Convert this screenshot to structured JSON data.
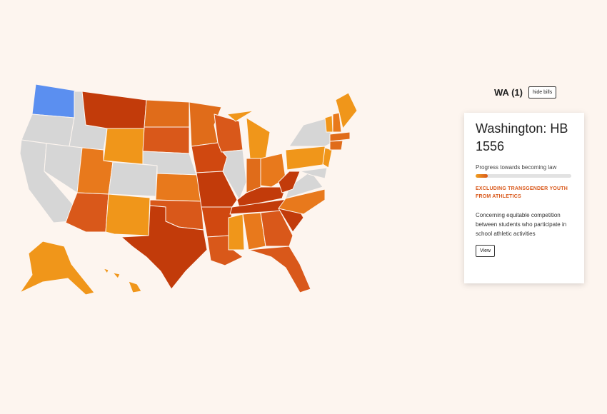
{
  "panel": {
    "heading": "WA (1)",
    "toggle_button": "hide bills"
  },
  "bill": {
    "title": "Washington: HB 1556",
    "progress_label": "Progress towards becoming law",
    "progress": 0.13,
    "category": "EXCLUDING TRANSGENDER YOUTH FROM ATHLETICS",
    "description": "Concerning equitable competition between students who participate in school athletic activities",
    "view_button": "View"
  }
}
